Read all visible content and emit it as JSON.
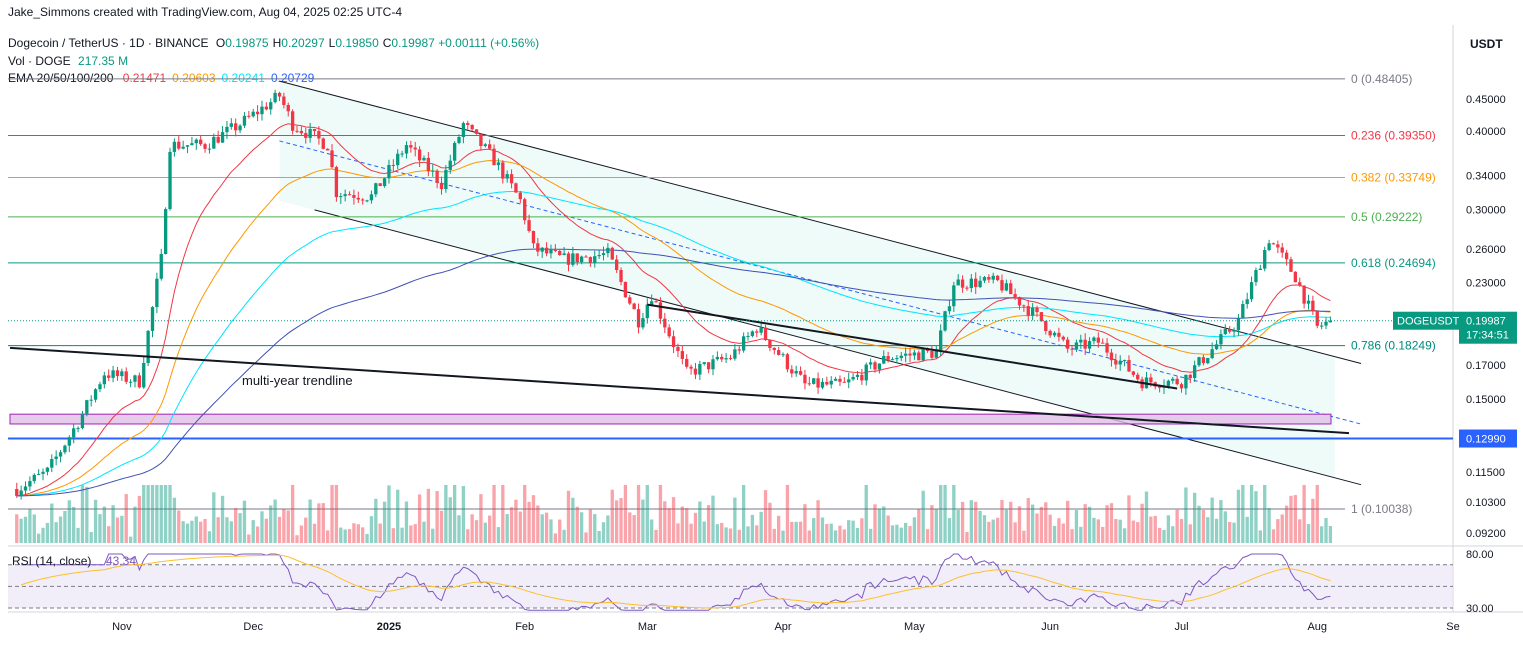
{
  "credit": "Jake_Simmons created with TradingView.com, Aug 04, 2025 02:25 UTC-4",
  "currency": "USDT",
  "legend": {
    "symbol": "Dogecoin / TetherUS · 1D · BINANCE",
    "ohlc": [
      {
        "k": "O",
        "v": "0.19875"
      },
      {
        "k": "H",
        "v": "0.20297"
      },
      {
        "k": "L",
        "v": "0.19850"
      },
      {
        "k": "C",
        "v": "0.19987"
      }
    ],
    "change": "+0.00111 (+0.56%)",
    "volume_label": "Vol · DOGE",
    "volume_value": "217.35 M",
    "ema_label": "EMA 20/50/100/200",
    "ema_values": [
      {
        "v": "0.21471",
        "color": "#f23645"
      },
      {
        "v": "0.20603",
        "color": "#ff9800"
      },
      {
        "v": "0.20241",
        "color": "#00e5ff"
      },
      {
        "v": "0.20729",
        "color": "#2962ff"
      }
    ],
    "rsi_label": "RSI (14, close)",
    "rsi_value": "43.34"
  },
  "annotation": "multi-year trendline",
  "price_tag": {
    "symbol": "DOGEUSDT",
    "price": "0.19987",
    "countdown": "17:34:51"
  },
  "support_tag": "0.12990",
  "colors": {
    "up": "#089981",
    "down": "#f23645",
    "tag": "#089981",
    "support": "#2962ff"
  },
  "chart_data": {
    "type": "candlestick",
    "y_scale": "log",
    "ylim": [
      0.088,
      0.5
    ],
    "y_ticks": [
      "0.45000",
      "0.40000",
      "0.34000",
      "0.30000",
      "0.26000",
      "0.23000",
      "0.17000",
      "0.15000",
      "0.11500",
      "0.10300",
      "0.09200"
    ],
    "x_ticks": [
      "Nov",
      "Dec",
      "2025",
      "Feb",
      "Mar",
      "Apr",
      "May",
      "Jun",
      "Jul",
      "Aug",
      "Se"
    ],
    "fib_levels": [
      {
        "ratio": "0",
        "price": 0.48405,
        "label": "0 (0.48405)",
        "color": "#787b86"
      },
      {
        "ratio": "0.236",
        "price": 0.3935,
        "label": "0.236 (0.39350)",
        "color": "#f23645"
      },
      {
        "ratio": "0.382",
        "price": 0.33749,
        "label": "0.382 (0.33749)",
        "color": "#ff9800"
      },
      {
        "ratio": "0.5",
        "price": 0.29222,
        "label": "0.5 (0.29222)",
        "color": "#4caf50"
      },
      {
        "ratio": "0.618",
        "price": 0.24694,
        "label": "0.618 (0.24694)",
        "color": "#089981"
      },
      {
        "ratio": "0.786",
        "price": 0.18249,
        "label": "0.786 (0.18249)",
        "color": "#00897b"
      },
      {
        "ratio": "1",
        "price": 0.10038,
        "label": "1 (0.10038)",
        "color": "#787b86"
      }
    ],
    "horizontal_support": 0.1299,
    "support_zone": [
      0.137,
      0.142
    ],
    "series_path": [
      [
        "2024-10-08",
        0.108
      ],
      [
        "2024-10-15",
        0.115
      ],
      [
        "2024-10-22",
        0.138
      ],
      [
        "2024-10-28",
        0.165
      ],
      [
        "2024-11-05",
        0.16
      ],
      [
        "2024-11-10",
        0.25
      ],
      [
        "2024-11-12",
        0.38
      ],
      [
        "2024-11-20",
        0.38
      ],
      [
        "2024-11-28",
        0.41
      ],
      [
        "2024-12-07",
        0.455
      ],
      [
        "2024-12-10",
        0.41
      ],
      [
        "2024-12-18",
        0.38
      ],
      [
        "2024-12-20",
        0.32
      ],
      [
        "2024-12-28",
        0.315
      ],
      [
        "2025-01-05",
        0.38
      ],
      [
        "2025-01-13",
        0.33
      ],
      [
        "2025-01-18",
        0.41
      ],
      [
        "2025-01-25",
        0.36
      ],
      [
        "2025-01-31",
        0.31
      ],
      [
        "2025-02-03",
        0.26
      ],
      [
        "2025-02-10",
        0.25
      ],
      [
        "2025-02-20",
        0.255
      ],
      [
        "2025-02-27",
        0.2
      ],
      [
        "2025-03-02",
        0.22
      ],
      [
        "2025-03-10",
        0.165
      ],
      [
        "2025-03-20",
        0.175
      ],
      [
        "2025-03-26",
        0.195
      ],
      [
        "2025-04-06",
        0.158
      ],
      [
        "2025-04-15",
        0.158
      ],
      [
        "2025-04-25",
        0.175
      ],
      [
        "2025-05-06",
        0.178
      ],
      [
        "2025-05-10",
        0.23
      ],
      [
        "2025-05-20",
        0.23
      ],
      [
        "2025-05-30",
        0.2
      ],
      [
        "2025-06-05",
        0.18
      ],
      [
        "2025-06-12",
        0.185
      ],
      [
        "2025-06-22",
        0.16
      ],
      [
        "2025-07-01",
        0.16
      ],
      [
        "2025-07-08",
        0.18
      ],
      [
        "2025-07-14",
        0.2
      ],
      [
        "2025-07-21",
        0.27
      ],
      [
        "2025-07-27",
        0.235
      ],
      [
        "2025-08-01",
        0.195
      ],
      [
        "2025-08-04",
        0.19987
      ]
    ],
    "ema_20": [
      [
        "2024-11-12",
        0.22
      ],
      [
        "2024-11-28",
        0.35
      ],
      [
        "2024-12-10",
        0.39
      ],
      [
        "2025-01-05",
        0.34
      ],
      [
        "2025-02-05",
        0.3
      ],
      [
        "2025-03-05",
        0.22
      ],
      [
        "2025-04-10",
        0.172
      ],
      [
        "2025-05-06",
        0.175
      ],
      [
        "2025-05-20",
        0.21
      ],
      [
        "2025-06-20",
        0.175
      ],
      [
        "2025-07-08",
        0.17
      ],
      [
        "2025-07-25",
        0.23
      ],
      [
        "2025-08-04",
        0.21471
      ]
    ],
    "ema_200": [
      [
        "2024-10-08",
        0.112
      ],
      [
        "2024-11-15",
        0.14
      ],
      [
        "2024-12-15",
        0.18
      ],
      [
        "2025-01-20",
        0.225
      ],
      [
        "2025-02-20",
        0.25
      ],
      [
        "2025-04-10",
        0.235
      ],
      [
        "2025-06-01",
        0.215
      ],
      [
        "2025-08-04",
        0.20729
      ]
    ],
    "rsi_ylim": [
      30,
      80
    ],
    "rsi_levels": [
      70,
      50,
      30
    ],
    "rsi_ticks": [
      "80.00",
      "30.00"
    ]
  }
}
